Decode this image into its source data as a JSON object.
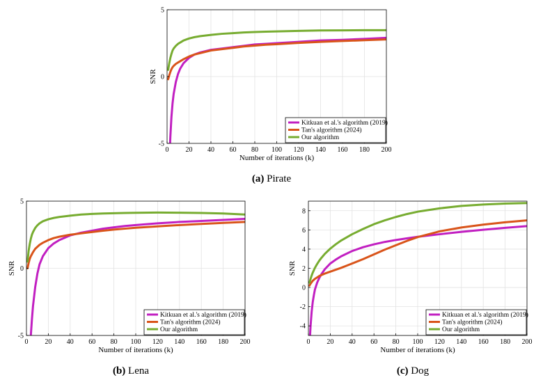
{
  "colors": {
    "kitkuan": "#c11fc1",
    "tan": "#d9541a",
    "ours": "#77ac30",
    "grid": "#e2e2e2",
    "axis": "#000000"
  },
  "chart_data": [
    {
      "id": "a",
      "type": "line",
      "caption_tag": "(a)",
      "caption": "Pirate",
      "xlabel": "Number of iterations (k)",
      "ylabel": "SNR",
      "xlim": [
        0,
        200
      ],
      "ylim": [
        -5,
        5
      ],
      "xticks": [
        0,
        20,
        40,
        60,
        80,
        100,
        120,
        140,
        160,
        180,
        200
      ],
      "yticks": [
        -5,
        0,
        5
      ],
      "grid": true,
      "legend_position": "bottom-right",
      "x": [
        1,
        2,
        3,
        4,
        5,
        6,
        8,
        10,
        12,
        15,
        20,
        25,
        30,
        40,
        50,
        60,
        70,
        80,
        90,
        100,
        120,
        140,
        160,
        180,
        200
      ],
      "series": [
        {
          "name": "Kitkuan et al.'s algorithm (2019)",
          "color_key": "kitkuan",
          "values": [
            -8.0,
            -6.5,
            -4.5,
            -3.0,
            -2.0,
            -1.3,
            -0.4,
            0.2,
            0.6,
            1.0,
            1.4,
            1.65,
            1.8,
            2.0,
            2.1,
            2.2,
            2.3,
            2.4,
            2.45,
            2.5,
            2.6,
            2.7,
            2.75,
            2.82,
            2.9
          ]
        },
        {
          "name": "Tan's algorithm (2024)",
          "color_key": "tan",
          "values": [
            -0.2,
            0.1,
            0.35,
            0.55,
            0.7,
            0.8,
            0.95,
            1.05,
            1.15,
            1.3,
            1.5,
            1.65,
            1.75,
            1.95,
            2.05,
            2.15,
            2.25,
            2.32,
            2.38,
            2.42,
            2.52,
            2.6,
            2.66,
            2.72,
            2.78
          ]
        },
        {
          "name": "Our algorithm",
          "color_key": "ours",
          "values": [
            0.5,
            1.0,
            1.4,
            1.7,
            1.95,
            2.1,
            2.3,
            2.45,
            2.55,
            2.7,
            2.85,
            2.95,
            3.02,
            3.12,
            3.2,
            3.25,
            3.3,
            3.33,
            3.36,
            3.38,
            3.42,
            3.45,
            3.46,
            3.47,
            3.47
          ]
        }
      ]
    },
    {
      "id": "b",
      "type": "line",
      "caption_tag": "(b)",
      "caption": "Lena",
      "xlabel": "Number of iterations (k)",
      "ylabel": "SNR",
      "xlim": [
        0,
        200
      ],
      "ylim": [
        -5,
        5
      ],
      "xticks": [
        0,
        20,
        40,
        60,
        80,
        100,
        120,
        140,
        160,
        180,
        200
      ],
      "yticks": [
        -5,
        0,
        5
      ],
      "grid": true,
      "legend_position": "bottom-right",
      "x": [
        1,
        2,
        3,
        4,
        5,
        6,
        8,
        10,
        12,
        15,
        20,
        25,
        30,
        40,
        50,
        60,
        70,
        80,
        90,
        100,
        120,
        140,
        160,
        180,
        200
      ],
      "series": [
        {
          "name": "Kitkuan et al.'s algorithm (2019)",
          "color_key": "kitkuan",
          "values": [
            -9.0,
            -7.5,
            -6.0,
            -5.0,
            -3.8,
            -2.8,
            -1.4,
            -0.4,
            0.3,
            0.9,
            1.5,
            1.85,
            2.1,
            2.45,
            2.65,
            2.8,
            2.95,
            3.05,
            3.15,
            3.22,
            3.35,
            3.45,
            3.52,
            3.6,
            3.68
          ]
        },
        {
          "name": "Tan's algorithm (2024)",
          "color_key": "tan",
          "values": [
            0.0,
            0.4,
            0.7,
            0.9,
            1.05,
            1.2,
            1.45,
            1.6,
            1.75,
            1.9,
            2.1,
            2.25,
            2.35,
            2.5,
            2.6,
            2.7,
            2.8,
            2.88,
            2.95,
            3.02,
            3.12,
            3.22,
            3.3,
            3.38,
            3.45
          ]
        },
        {
          "name": "Our algorithm",
          "color_key": "ours",
          "values": [
            0.5,
            1.3,
            1.8,
            2.2,
            2.5,
            2.7,
            3.0,
            3.2,
            3.35,
            3.5,
            3.65,
            3.75,
            3.82,
            3.92,
            4.0,
            4.05,
            4.08,
            4.1,
            4.12,
            4.13,
            4.15,
            4.14,
            4.12,
            4.08,
            4.0
          ]
        }
      ]
    },
    {
      "id": "c",
      "type": "line",
      "caption_tag": "(c)",
      "caption": "Dog",
      "xlabel": "Number of iterations (k)",
      "ylabel": "SNR",
      "xlim": [
        0,
        200
      ],
      "ylim": [
        -5,
        9
      ],
      "xticks": [
        0,
        20,
        40,
        60,
        80,
        100,
        120,
        140,
        160,
        180,
        200
      ],
      "yticks": [
        -4,
        -2,
        0,
        2,
        4,
        6,
        8
      ],
      "grid": true,
      "legend_position": "bottom-right",
      "x": [
        1,
        2,
        3,
        4,
        5,
        6,
        8,
        10,
        12,
        15,
        20,
        25,
        30,
        40,
        50,
        60,
        70,
        80,
        90,
        100,
        120,
        140,
        160,
        180,
        200
      ],
      "series": [
        {
          "name": "Kitkuan et al.'s algorithm (2019)",
          "color_key": "kitkuan",
          "values": [
            -6.0,
            -4.0,
            -2.5,
            -1.5,
            -0.8,
            -0.2,
            0.5,
            1.0,
            1.4,
            1.9,
            2.5,
            2.9,
            3.25,
            3.8,
            4.2,
            4.5,
            4.75,
            4.95,
            5.12,
            5.28,
            5.55,
            5.8,
            6.02,
            6.22,
            6.4
          ]
        },
        {
          "name": "Tan's algorithm (2024)",
          "color_key": "tan",
          "values": [
            0.2,
            0.4,
            0.55,
            0.7,
            0.8,
            0.9,
            1.05,
            1.2,
            1.3,
            1.45,
            1.65,
            1.85,
            2.05,
            2.5,
            2.95,
            3.45,
            3.95,
            4.4,
            4.85,
            5.25,
            5.85,
            6.25,
            6.55,
            6.8,
            7.0
          ]
        },
        {
          "name": "Our algorithm",
          "color_key": "ours",
          "values": [
            0.5,
            0.9,
            1.25,
            1.55,
            1.8,
            2.05,
            2.45,
            2.8,
            3.1,
            3.5,
            4.05,
            4.5,
            4.9,
            5.55,
            6.1,
            6.6,
            7.0,
            7.35,
            7.65,
            7.9,
            8.25,
            8.5,
            8.65,
            8.75,
            8.8
          ]
        }
      ]
    }
  ]
}
